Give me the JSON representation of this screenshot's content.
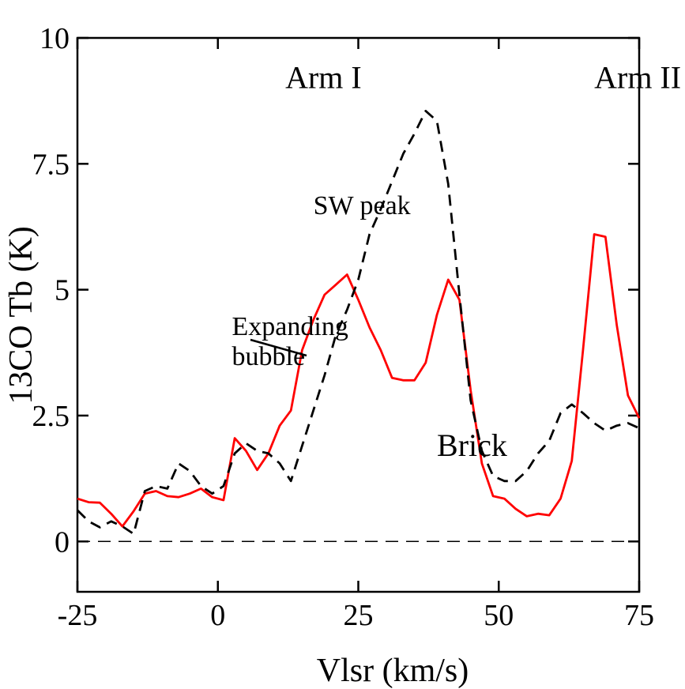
{
  "chart_data": {
    "type": "line",
    "xlabel": "Vlsr (km/s)",
    "ylabel": "13CO Tb (K)",
    "xlim": [
      -25,
      75
    ],
    "ylim": [
      -1,
      10
    ],
    "xticks": [
      -25,
      0,
      25,
      50,
      75
    ],
    "xtick_labels": [
      "-25",
      "0",
      "25",
      "50",
      "75"
    ],
    "yticks": [
      0,
      2.5,
      5,
      7.5,
      10
    ],
    "ytick_labels": [
      "0",
      "2.5",
      "5",
      "7.5",
      "10"
    ],
    "grid": false,
    "legend": "none",
    "annotations": [
      {
        "id": "arm1",
        "text": "Arm I",
        "x": 12,
        "y": 9.0
      },
      {
        "id": "arm2",
        "text": "Arm II",
        "x": 67,
        "y": 9.0
      },
      {
        "id": "swpeak",
        "text": "SW peak",
        "x": 17,
        "y": 6.5
      },
      {
        "id": "brick",
        "text": "Brick",
        "x": 39,
        "y": 1.7
      },
      {
        "id": "bubble1",
        "text": "Expanding",
        "x": 2.5,
        "y": 4.1,
        "color": "#ff0000"
      },
      {
        "id": "bubble2",
        "text": "bubble",
        "x": 2.5,
        "y": 3.5,
        "color": "#ff0000"
      }
    ],
    "series": [
      {
        "color": "#ff0000",
        "style": "solid",
        "x": [
          -25,
          -23,
          -21,
          -19,
          -17,
          -15,
          -13,
          -11,
          -9,
          -7,
          -5,
          -3,
          -1,
          1,
          3,
          5,
          7,
          9,
          11,
          13,
          15,
          17,
          19,
          21,
          23,
          25,
          27,
          29,
          31,
          33,
          35,
          37,
          39,
          41,
          43,
          45,
          47,
          49,
          51,
          53,
          55,
          57,
          59,
          61,
          63,
          65,
          67,
          69,
          71,
          73,
          75
        ],
        "values": [
          0.85,
          0.78,
          0.77,
          0.55,
          0.3,
          0.6,
          0.95,
          1.0,
          0.9,
          0.88,
          0.95,
          1.05,
          0.88,
          0.82,
          2.05,
          1.8,
          1.42,
          1.75,
          2.3,
          2.6,
          3.8,
          4.4,
          4.9,
          5.1,
          5.3,
          4.8,
          4.25,
          3.8,
          3.25,
          3.2,
          3.2,
          3.55,
          4.5,
          5.2,
          4.8,
          3.0,
          1.55,
          0.9,
          0.85,
          0.65,
          0.5,
          0.55,
          0.52,
          0.85,
          1.6,
          3.8,
          6.1,
          6.05,
          4.3,
          2.9,
          2.45
        ]
      },
      {
        "color": "#000000",
        "style": "dashed",
        "x": [
          -25,
          -23,
          -21,
          -19,
          -17,
          -15,
          -13,
          -11,
          -9,
          -7,
          -5,
          -3,
          -1,
          1,
          3,
          5,
          7,
          9,
          11,
          13,
          15,
          17,
          19,
          21,
          23,
          25,
          27,
          29,
          31,
          33,
          35,
          37,
          39,
          41,
          43,
          45,
          47,
          49,
          51,
          53,
          55,
          57,
          59,
          61,
          63,
          65,
          67,
          69,
          71,
          73,
          75
        ],
        "values": [
          0.62,
          0.4,
          0.28,
          0.4,
          0.3,
          0.15,
          1.0,
          1.1,
          1.05,
          1.55,
          1.4,
          1.1,
          0.95,
          1.1,
          1.75,
          1.95,
          1.8,
          1.75,
          1.55,
          1.2,
          1.9,
          2.6,
          3.3,
          4.1,
          4.6,
          5.2,
          6.1,
          6.6,
          7.15,
          7.7,
          8.1,
          8.55,
          8.35,
          7.1,
          4.9,
          2.8,
          1.8,
          1.3,
          1.2,
          1.2,
          1.4,
          1.75,
          2.0,
          2.55,
          2.72,
          2.55,
          2.35,
          2.2,
          2.3,
          2.35,
          2.25
        ]
      },
      {
        "color": "#000000",
        "style": "dashed-long",
        "x": [
          -25,
          75
        ],
        "values": [
          0,
          0
        ]
      }
    ]
  }
}
